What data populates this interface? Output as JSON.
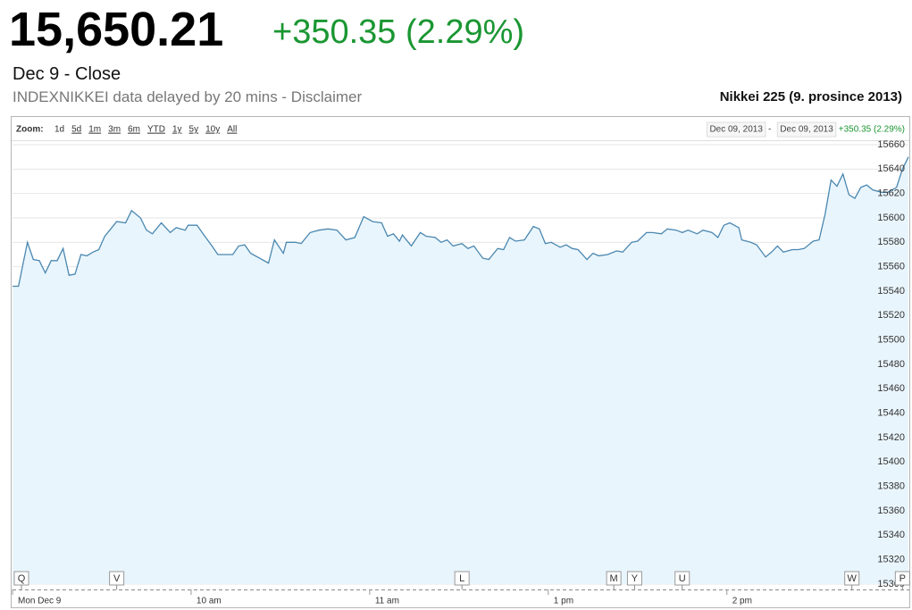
{
  "header": {
    "price": "15,650.21",
    "change": "+350.35 (2.29%)",
    "date": "Dec 9 - Close",
    "disclaimer": "INDEXNIKKEI data delayed by 20 mins - Disclaimer"
  },
  "toolbar": {
    "zoom_label": "Zoom:",
    "zoom_options": [
      "1d",
      "5d",
      "1m",
      "3m",
      "6m",
      "YTD",
      "1y",
      "5y",
      "10y",
      "All"
    ],
    "range_from": "Dec 09, 2013",
    "range_separator": "-",
    "range_to": "Dec 09, 2013",
    "range_change": "+350.35 (2.29%)"
  },
  "chart_data": {
    "type": "area",
    "title": "Nikkei 225 (9. prosince 2013)",
    "color": "#4a87b0",
    "fill": "#e9f5fc",
    "x": [
      0,
      2,
      5,
      7,
      9,
      11,
      13,
      15,
      17,
      19,
      21,
      23,
      25,
      27,
      29,
      31,
      33,
      35,
      38,
      40,
      43,
      45,
      47,
      50,
      53,
      55,
      58,
      59,
      62,
      64,
      67,
      69,
      71,
      74,
      76,
      78,
      80,
      83,
      86,
      88,
      91,
      92,
      95,
      97,
      100,
      103,
      106,
      109,
      112,
      115,
      118,
      121,
      124,
      126,
      128,
      130,
      131,
      134,
      137,
      139,
      142,
      144,
      146,
      148,
      151,
      153,
      155,
      158,
      160,
      163,
      165,
      167,
      169,
      172,
      175,
      177,
      179,
      181,
      184,
      186,
      188,
      190,
      193,
      195,
      197,
      200,
      203,
      205,
      208,
      210,
      213,
      215,
      218,
      220,
      223,
      225,
      227,
      230,
      232,
      235,
      237,
      239,
      241,
      244,
      245,
      248,
      250,
      253,
      255,
      257,
      259,
      262,
      264,
      266,
      269,
      271,
      273,
      275,
      277,
      279,
      281,
      283,
      285,
      287,
      289,
      292,
      294,
      297,
      299,
      301
    ],
    "values": [
      15544,
      15544,
      15580,
      15566,
      15565,
      15555,
      15565,
      15565,
      15575,
      15553,
      15554,
      15570,
      15569,
      15572,
      15574,
      15585,
      15591,
      15597,
      15596,
      15606,
      15600,
      15590,
      15587,
      15596,
      15588,
      15592,
      15590,
      15594,
      15594,
      15587,
      15577,
      15570,
      15570,
      15570,
      15577,
      15578,
      15571,
      15567,
      15563,
      15582,
      15571,
      15580,
      15580,
      15579,
      15588,
      15590,
      15591,
      15590,
      15582,
      15584,
      15601,
      15597,
      15596,
      15585,
      15587,
      15581,
      15586,
      15577,
      15588,
      15585,
      15584,
      15580,
      15582,
      15577,
      15579,
      15575,
      15577,
      15567,
      15566,
      15575,
      15574,
      15584,
      15581,
      15582,
      15593,
      15591,
      15579,
      15580,
      15576,
      15578,
      15575,
      15574,
      15566,
      15571,
      15569,
      15570,
      15573,
      15572,
      15580,
      15581,
      15588,
      15588,
      15587,
      15591,
      15590,
      15588,
      15590,
      15587,
      15590,
      15588,
      15584,
      15594,
      15596,
      15592,
      15582,
      15580,
      15578,
      15568,
      15572,
      15577,
      15572,
      15574,
      15574,
      15575,
      15581,
      15582,
      15603,
      15631,
      15626,
      15636,
      15619,
      15616,
      15625,
      15627,
      15623,
      15621,
      15621,
      15625,
      15640,
      15650
    ],
    "xlim": [
      0,
      301
    ],
    "xticks": [
      {
        "value": 0,
        "label": "Mon Dec 9"
      },
      {
        "value": 60,
        "label": "10 am"
      },
      {
        "value": 120,
        "label": "11 am"
      },
      {
        "value": 180,
        "label": "1 pm"
      },
      {
        "value": 240,
        "label": "2 pm"
      }
    ],
    "ylim": [
      15300,
      15660
    ],
    "yticks": [
      15300,
      15320,
      15340,
      15360,
      15380,
      15400,
      15420,
      15440,
      15460,
      15480,
      15500,
      15520,
      15540,
      15560,
      15580,
      15600,
      15620,
      15640,
      15660
    ],
    "grid": true,
    "flags": [
      {
        "label": "Q",
        "x": 3
      },
      {
        "label": "V",
        "x": 35
      },
      {
        "label": "L",
        "x": 151
      },
      {
        "label": "M",
        "x": 202
      },
      {
        "label": "Y",
        "x": 209
      },
      {
        "label": "U",
        "x": 225
      },
      {
        "label": "W",
        "x": 282
      },
      {
        "label": "P",
        "x": 299
      }
    ]
  }
}
